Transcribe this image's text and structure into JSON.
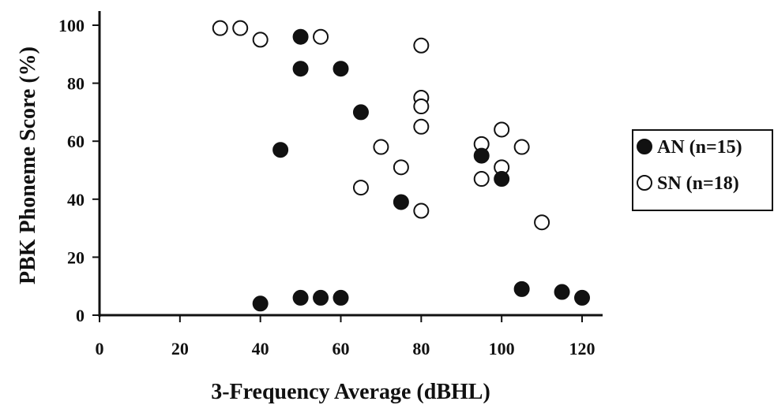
{
  "chart_data": {
    "type": "scatter",
    "title": "",
    "xlabel": "3-Frequency Average (dBHL)",
    "ylabel": "PBK Phoneme Score (%)",
    "xlim": [
      0,
      125
    ],
    "ylim": [
      0,
      100
    ],
    "x_ticks": [
      0,
      20,
      40,
      60,
      80,
      100,
      120
    ],
    "y_ticks": [
      0,
      20,
      40,
      60,
      80,
      100
    ],
    "grid": false,
    "legend_position": "right",
    "series": [
      {
        "name": "AN (n=15)",
        "marker": "filled-circle",
        "color": "#111111",
        "points": [
          {
            "x": 40,
            "y": 4
          },
          {
            "x": 45,
            "y": 57
          },
          {
            "x": 50,
            "y": 96
          },
          {
            "x": 50,
            "y": 85
          },
          {
            "x": 50,
            "y": 6
          },
          {
            "x": 55,
            "y": 6
          },
          {
            "x": 60,
            "y": 85
          },
          {
            "x": 60,
            "y": 6
          },
          {
            "x": 65,
            "y": 70
          },
          {
            "x": 75,
            "y": 39
          },
          {
            "x": 95,
            "y": 55
          },
          {
            "x": 100,
            "y": 47
          },
          {
            "x": 105,
            "y": 9
          },
          {
            "x": 115,
            "y": 8
          },
          {
            "x": 120,
            "y": 6
          }
        ]
      },
      {
        "name": "SN (n=18)",
        "marker": "open-circle",
        "color": "#111111",
        "points": [
          {
            "x": 30,
            "y": 99
          },
          {
            "x": 35,
            "y": 99
          },
          {
            "x": 40,
            "y": 95
          },
          {
            "x": 55,
            "y": 96
          },
          {
            "x": 65,
            "y": 44
          },
          {
            "x": 70,
            "y": 58
          },
          {
            "x": 75,
            "y": 51
          },
          {
            "x": 80,
            "y": 93
          },
          {
            "x": 80,
            "y": 75
          },
          {
            "x": 80,
            "y": 72
          },
          {
            "x": 80,
            "y": 65
          },
          {
            "x": 80,
            "y": 36
          },
          {
            "x": 95,
            "y": 59
          },
          {
            "x": 95,
            "y": 47
          },
          {
            "x": 100,
            "y": 64
          },
          {
            "x": 100,
            "y": 51
          },
          {
            "x": 105,
            "y": 58
          },
          {
            "x": 110,
            "y": 32
          }
        ]
      }
    ]
  }
}
